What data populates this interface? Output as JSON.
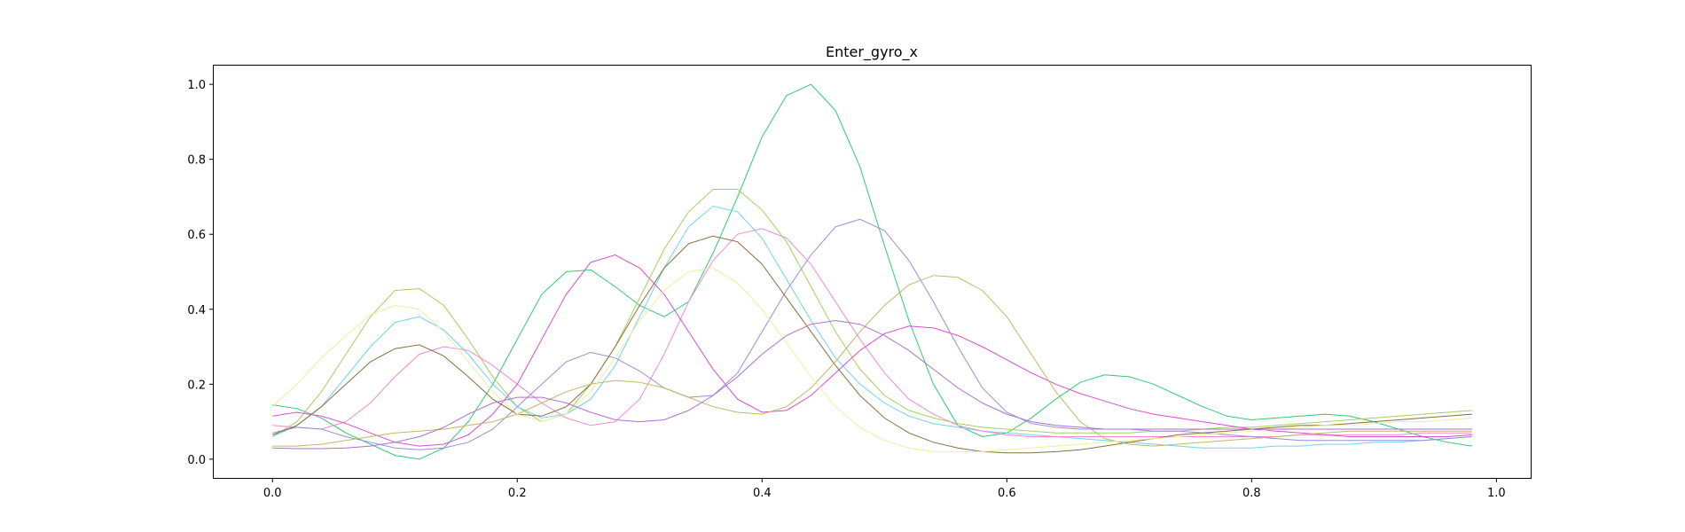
{
  "chart_data": {
    "type": "line",
    "title": "Enter_gyro_x",
    "xlabel": "",
    "ylabel": "",
    "xlim": [
      -0.048,
      1.028
    ],
    "ylim": [
      -0.05,
      1.05
    ],
    "x_ticks": [
      0.0,
      0.2,
      0.4,
      0.6,
      0.8,
      1.0
    ],
    "y_ticks": [
      0.0,
      0.2,
      0.4,
      0.6,
      0.8,
      1.0
    ],
    "x_tick_labels": [
      "0.0",
      "0.2",
      "0.4",
      "0.6",
      "0.8",
      "1.0"
    ],
    "y_tick_labels": [
      "0.0",
      "0.2",
      "0.4",
      "0.6",
      "0.8",
      "1.0"
    ],
    "grid": false,
    "legend": "none",
    "x": [
      0.0,
      0.02,
      0.04,
      0.06,
      0.08,
      0.1,
      0.12,
      0.14,
      0.16,
      0.18,
      0.2,
      0.22,
      0.24,
      0.26,
      0.28,
      0.3,
      0.32,
      0.34,
      0.36,
      0.38,
      0.4,
      0.42,
      0.44,
      0.46,
      0.48,
      0.5,
      0.52,
      0.54,
      0.56,
      0.58,
      0.6,
      0.62,
      0.64,
      0.66,
      0.68,
      0.7,
      0.72,
      0.74,
      0.76,
      0.78,
      0.8,
      0.82,
      0.84,
      0.86,
      0.88,
      0.9,
      0.92,
      0.94,
      0.96,
      0.98
    ],
    "series": [
      {
        "color": "#2ecc71",
        "values": [
          0.145,
          0.135,
          0.11,
          0.07,
          0.04,
          0.01,
          0.0,
          0.03,
          0.1,
          0.2,
          0.32,
          0.44,
          0.5,
          0.505,
          0.46,
          0.41,
          0.38,
          0.42,
          0.55,
          0.7,
          0.86,
          0.97,
          1.0,
          0.93,
          0.78,
          0.57,
          0.37,
          0.2,
          0.09,
          0.06,
          0.07,
          0.11,
          0.16,
          0.205,
          0.225,
          0.22,
          0.2,
          0.17,
          0.14,
          0.115,
          0.105,
          0.11,
          0.115,
          0.12,
          0.115,
          0.1,
          0.08,
          0.06,
          0.045,
          0.035
        ]
      },
      {
        "color": "#a6cf5e",
        "values": [
          0.06,
          0.1,
          0.18,
          0.28,
          0.38,
          0.45,
          0.455,
          0.41,
          0.32,
          0.22,
          0.14,
          0.1,
          0.12,
          0.2,
          0.3,
          0.43,
          0.56,
          0.66,
          0.72,
          0.72,
          0.665,
          0.58,
          0.46,
          0.34,
          0.24,
          0.17,
          0.13,
          0.11,
          0.095,
          0.085,
          0.08,
          0.075,
          0.07,
          0.07,
          0.07,
          0.07,
          0.075,
          0.075,
          0.08,
          0.085,
          0.085,
          0.09,
          0.095,
          0.1,
          0.105,
          0.11,
          0.115,
          0.12,
          0.125,
          0.13
        ]
      },
      {
        "color": "#6fd3ec",
        "values": [
          0.06,
          0.09,
          0.14,
          0.22,
          0.3,
          0.365,
          0.38,
          0.345,
          0.28,
          0.2,
          0.14,
          0.11,
          0.12,
          0.16,
          0.25,
          0.38,
          0.51,
          0.62,
          0.675,
          0.66,
          0.59,
          0.48,
          0.37,
          0.27,
          0.2,
          0.15,
          0.115,
          0.095,
          0.085,
          0.075,
          0.07,
          0.065,
          0.06,
          0.055,
          0.05,
          0.045,
          0.04,
          0.035,
          0.03,
          0.03,
          0.03,
          0.035,
          0.035,
          0.04,
          0.04,
          0.045,
          0.045,
          0.05,
          0.055,
          0.06
        ]
      },
      {
        "color": "#f28ad0",
        "values": [
          0.09,
          0.085,
          0.08,
          0.1,
          0.15,
          0.22,
          0.28,
          0.3,
          0.29,
          0.25,
          0.2,
          0.15,
          0.11,
          0.09,
          0.1,
          0.16,
          0.28,
          0.42,
          0.53,
          0.6,
          0.615,
          0.59,
          0.52,
          0.42,
          0.32,
          0.23,
          0.16,
          0.12,
          0.09,
          0.075,
          0.065,
          0.06,
          0.06,
          0.06,
          0.06,
          0.06,
          0.06,
          0.06,
          0.06,
          0.06,
          0.06,
          0.06,
          0.065,
          0.065,
          0.065,
          0.065,
          0.065,
          0.07,
          0.07,
          0.07
        ]
      },
      {
        "color": "#d64fd1",
        "values": [
          0.115,
          0.125,
          0.115,
          0.095,
          0.07,
          0.045,
          0.035,
          0.04,
          0.065,
          0.12,
          0.2,
          0.32,
          0.44,
          0.525,
          0.545,
          0.51,
          0.44,
          0.34,
          0.24,
          0.16,
          0.125,
          0.13,
          0.17,
          0.23,
          0.29,
          0.335,
          0.355,
          0.35,
          0.33,
          0.3,
          0.265,
          0.23,
          0.2,
          0.175,
          0.155,
          0.135,
          0.12,
          0.11,
          0.1,
          0.09,
          0.08,
          0.075,
          0.07,
          0.065,
          0.06,
          0.06,
          0.06,
          0.06,
          0.06,
          0.065
        ]
      },
      {
        "color": "#9b8cd6",
        "values": [
          0.07,
          0.085,
          0.08,
          0.06,
          0.045,
          0.03,
          0.025,
          0.03,
          0.045,
          0.08,
          0.14,
          0.2,
          0.26,
          0.285,
          0.27,
          0.235,
          0.19,
          0.165,
          0.17,
          0.23,
          0.34,
          0.45,
          0.545,
          0.62,
          0.64,
          0.61,
          0.53,
          0.42,
          0.3,
          0.19,
          0.125,
          0.095,
          0.085,
          0.08,
          0.08,
          0.08,
          0.075,
          0.075,
          0.07,
          0.065,
          0.06,
          0.055,
          0.05,
          0.05,
          0.05,
          0.05,
          0.05,
          0.05,
          0.055,
          0.06
        ]
      },
      {
        "color": "#8a6f3e",
        "values": [
          0.065,
          0.09,
          0.14,
          0.2,
          0.26,
          0.295,
          0.305,
          0.275,
          0.22,
          0.16,
          0.12,
          0.115,
          0.14,
          0.2,
          0.3,
          0.41,
          0.51,
          0.575,
          0.595,
          0.58,
          0.52,
          0.43,
          0.34,
          0.25,
          0.17,
          0.11,
          0.07,
          0.045,
          0.03,
          0.02,
          0.017,
          0.017,
          0.02,
          0.025,
          0.035,
          0.045,
          0.055,
          0.065,
          0.07,
          0.075,
          0.08,
          0.085,
          0.09,
          0.09,
          0.095,
          0.1,
          0.105,
          0.11,
          0.115,
          0.12
        ]
      },
      {
        "color": "#c4b66a",
        "values": [
          0.035,
          0.035,
          0.04,
          0.05,
          0.06,
          0.07,
          0.075,
          0.08,
          0.09,
          0.1,
          0.12,
          0.15,
          0.18,
          0.2,
          0.21,
          0.205,
          0.19,
          0.165,
          0.14,
          0.125,
          0.12,
          0.14,
          0.19,
          0.26,
          0.34,
          0.41,
          0.465,
          0.49,
          0.485,
          0.45,
          0.38,
          0.28,
          0.18,
          0.1,
          0.055,
          0.04,
          0.035,
          0.04,
          0.045,
          0.05,
          0.055,
          0.06,
          0.065,
          0.07,
          0.075,
          0.075,
          0.075,
          0.075,
          0.075,
          0.075
        ]
      },
      {
        "color": "#e8f0a0",
        "values": [
          0.14,
          0.2,
          0.27,
          0.33,
          0.385,
          0.41,
          0.4,
          0.34,
          0.26,
          0.18,
          0.12,
          0.1,
          0.12,
          0.18,
          0.27,
          0.37,
          0.45,
          0.5,
          0.51,
          0.47,
          0.4,
          0.31,
          0.22,
          0.14,
          0.085,
          0.05,
          0.03,
          0.02,
          0.02,
          0.02,
          0.025,
          0.03,
          0.035,
          0.04,
          0.045,
          0.05,
          0.055,
          0.06,
          0.065,
          0.07,
          0.075,
          0.08,
          0.085,
          0.09,
          0.09,
          0.095,
          0.1,
          0.1,
          0.105,
          0.11
        ]
      },
      {
        "color": "#b06fcf",
        "values": [
          0.03,
          0.028,
          0.028,
          0.03,
          0.035,
          0.045,
          0.06,
          0.085,
          0.12,
          0.15,
          0.165,
          0.165,
          0.15,
          0.125,
          0.105,
          0.1,
          0.105,
          0.13,
          0.17,
          0.22,
          0.28,
          0.33,
          0.36,
          0.37,
          0.36,
          0.33,
          0.29,
          0.24,
          0.19,
          0.15,
          0.12,
          0.1,
          0.09,
          0.085,
          0.08,
          0.08,
          0.08,
          0.08,
          0.08,
          0.08,
          0.08,
          0.08,
          0.08,
          0.08,
          0.08,
          0.08,
          0.08,
          0.08,
          0.08,
          0.08
        ]
      }
    ]
  }
}
